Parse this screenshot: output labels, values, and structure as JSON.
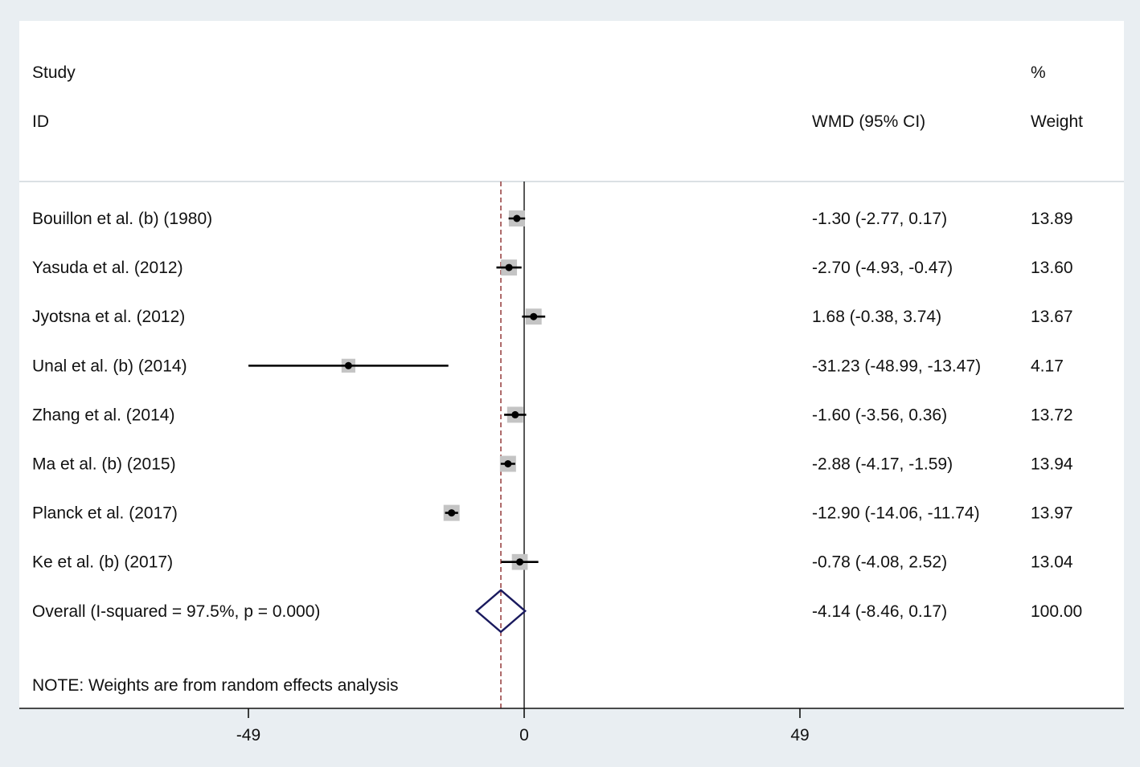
{
  "chart_data": {
    "type": "forest",
    "header": {
      "study_line1": "Study",
      "study_line2": "ID",
      "effect_label": "WMD (95% CI)",
      "weight_line1": "%",
      "weight_line2": "Weight"
    },
    "studies": [
      {
        "name": "Bouillon et al. (b) (1980)",
        "est": -1.3,
        "lo": -2.77,
        "hi": 0.17,
        "ci_text": "-1.30 (-2.77, 0.17)",
        "weight": 13.89,
        "weight_text": "13.89"
      },
      {
        "name": "Yasuda et al. (2012)",
        "est": -2.7,
        "lo": -4.93,
        "hi": -0.47,
        "ci_text": "-2.70 (-4.93, -0.47)",
        "weight": 13.6,
        "weight_text": "13.60"
      },
      {
        "name": "Jyotsna et al. (2012)",
        "est": 1.68,
        "lo": -0.38,
        "hi": 3.74,
        "ci_text": "1.68 (-0.38, 3.74)",
        "weight": 13.67,
        "weight_text": "13.67"
      },
      {
        "name": "Unal et al. (b) (2014)",
        "est": -31.23,
        "lo": -48.99,
        "hi": -13.47,
        "ci_text": "-31.23 (-48.99, -13.47)",
        "weight": 4.17,
        "weight_text": "4.17"
      },
      {
        "name": "Zhang et al. (2014)",
        "est": -1.6,
        "lo": -3.56,
        "hi": 0.36,
        "ci_text": "-1.60 (-3.56, 0.36)",
        "weight": 13.72,
        "weight_text": "13.72"
      },
      {
        "name": "Ma et al. (b) (2015)",
        "est": -2.88,
        "lo": -4.17,
        "hi": -1.59,
        "ci_text": "-2.88 (-4.17, -1.59)",
        "weight": 13.94,
        "weight_text": "13.94"
      },
      {
        "name": "Planck et al. (2017)",
        "est": -12.9,
        "lo": -14.06,
        "hi": -11.74,
        "ci_text": "-12.90 (-14.06, -11.74)",
        "weight": 13.97,
        "weight_text": "13.97"
      },
      {
        "name": "Ke et al. (b) (2017)",
        "est": -0.78,
        "lo": -4.08,
        "hi": 2.52,
        "ci_text": "-0.78 (-4.08, 2.52)",
        "weight": 13.04,
        "weight_text": "13.04"
      }
    ],
    "overall": {
      "name": "Overall  (I-squared = 97.5%, p = 0.000)",
      "est": -4.14,
      "lo": -8.46,
      "hi": 0.17,
      "ci_text": "-4.14 (-8.46, 0.17)",
      "weight_text": "100.00"
    },
    "note": "NOTE: Weights are from random effects analysis",
    "x_ticks": [
      -49,
      0,
      49
    ],
    "x_tick_labels": [
      "-49",
      "0",
      "49"
    ],
    "xlim": [
      -49,
      49
    ],
    "reference_line": 0,
    "colors": {
      "background": "#e9eef2",
      "panel": "#ffffff",
      "weight_box": "#c4c4c4",
      "point": "#000000",
      "overall_diamond": "#1a1a5e",
      "overall_line": "#8b2b2b"
    }
  }
}
